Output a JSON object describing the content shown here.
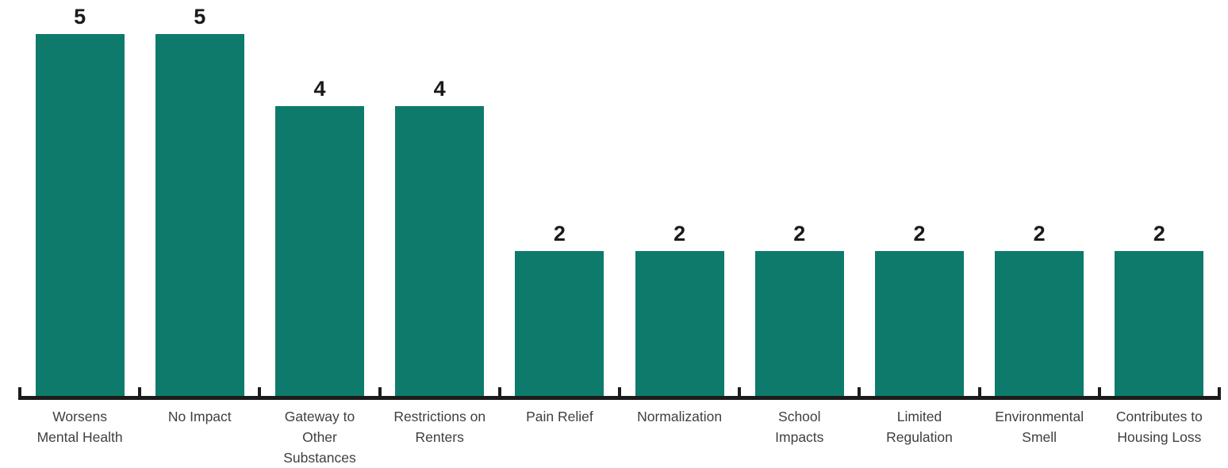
{
  "chart_data": {
    "type": "bar",
    "title": "",
    "xlabel": "",
    "ylabel": "",
    "categories": [
      "Worsens\nMental Health",
      "No Impact",
      "Gateway to\nOther\nSubstances",
      "Restrictions on\nRenters",
      "Pain Relief",
      "Normalization",
      "School\nImpacts",
      "Limited\nRegulation",
      "Environmental\nSmell",
      "Contributes to\nHousing Loss"
    ],
    "values": [
      5,
      5,
      4,
      4,
      2,
      2,
      2,
      2,
      2,
      2
    ],
    "ylim": [
      0,
      5.5
    ],
    "grid": false,
    "legend_position": "none",
    "value_labels_shown": true,
    "colors": {
      "bar": "#0E7A6B",
      "value_label": "#1A1A1A",
      "category_label": "#3F3F3F",
      "axis": "#1B1B1B"
    }
  }
}
